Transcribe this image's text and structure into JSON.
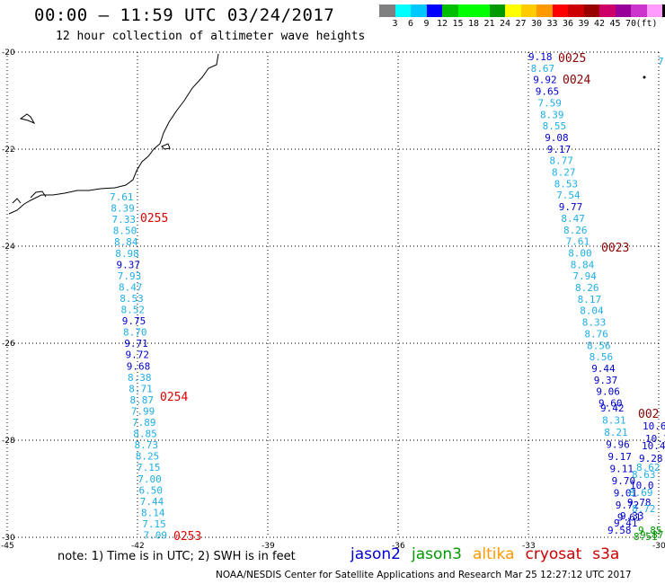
{
  "header": {
    "title": "00:00 – 11:59 UTC 03/24/2017",
    "subtitle": "12 hour collection of altimeter wave heights"
  },
  "legend": {
    "colors": [
      "#808080",
      "#00ffff",
      "#00c8ff",
      "#0000ff",
      "#00bf00",
      "#00ff00",
      "#00ff00",
      "#009900",
      "#ffff00",
      "#ffcc00",
      "#ff9900",
      "#ff0000",
      "#cc0000",
      "#990000",
      "#cc0066",
      "#990099",
      "#cc33cc",
      "#ff99ff",
      "#000000"
    ],
    "labels": [
      "3",
      "6",
      "9",
      "12",
      "15",
      "18",
      "21",
      "24",
      "27",
      "30",
      "33",
      "36",
      "39",
      "42",
      "45",
      "70",
      "(ft)"
    ]
  },
  "axes": {
    "lat_labels": [
      "-20",
      "-22",
      "-24",
      "-26",
      "-28",
      "-30"
    ],
    "lon_labels": [
      "-45",
      "-42",
      "-39",
      "-36",
      "-33",
      "-30"
    ]
  },
  "tracks": {
    "left_track": {
      "values": [
        "7.61",
        "8.39",
        "7.33",
        "8.50",
        "8.84",
        "8.98",
        "9.37",
        "7.93",
        "8.47",
        "8.53",
        "8.52",
        "9.75",
        "8.70",
        "9.71",
        "9.72",
        "9.68",
        "8.38",
        "8.71",
        "8.87",
        "7.99",
        "7.89",
        "8.85",
        "8.73",
        "8.25",
        "7.15",
        "7.00",
        "6.50",
        "7.44",
        "8.14",
        "7.15",
        "7.09"
      ],
      "times": [
        "0255",
        "0254",
        "0253"
      ]
    },
    "right_track": {
      "values": [
        "9.18",
        "8.67",
        "9.92",
        "9.65",
        "7.59",
        "8.39",
        "8.55",
        "9.08",
        "9.17",
        "8.77",
        "8.27",
        "8.53",
        "7.54",
        "9.77",
        "8.47",
        "8.26",
        "7.61",
        "8.00",
        "8.84",
        "7.94",
        "8.26",
        "8.17",
        "8.04",
        "8.33",
        "8.76",
        "8.56",
        "8.56",
        "9.44",
        "9.37",
        "9.06",
        "9.60",
        "9.42",
        "8.31",
        "8.21",
        "9.96",
        "9.17",
        "9.11",
        "9.70",
        "9.01",
        "9.72",
        "9.61"
      ],
      "times": [
        "0025",
        "0024",
        "0023",
        "002"
      ],
      "edge_values": [
        "7.",
        "10.6",
        "10.1",
        "10.42",
        "9.28",
        "8.62",
        "8.63",
        "10.0",
        "8.69",
        "9.78",
        "8.72",
        "9.33",
        "9.41",
        "9.58",
        "9.85",
        "9.87",
        "8.51"
      ]
    }
  },
  "footer": {
    "note": "note: 1) Time is in UTC; 2) SWH is in feet",
    "satellites": [
      {
        "name": "jason2",
        "color": "#0000cc"
      },
      {
        "name": "jason3",
        "color": "#009900"
      },
      {
        "name": "altika",
        "color": "#ff9900"
      },
      {
        "name": "cryosat",
        "color": "#cc0000"
      },
      {
        "name": "s3a",
        "color": "#cc0000"
      }
    ],
    "credit": "NOAA/NESDIS Center for Satellite Applications and Research    Mar 25 12:27:12 UTC 2017"
  }
}
